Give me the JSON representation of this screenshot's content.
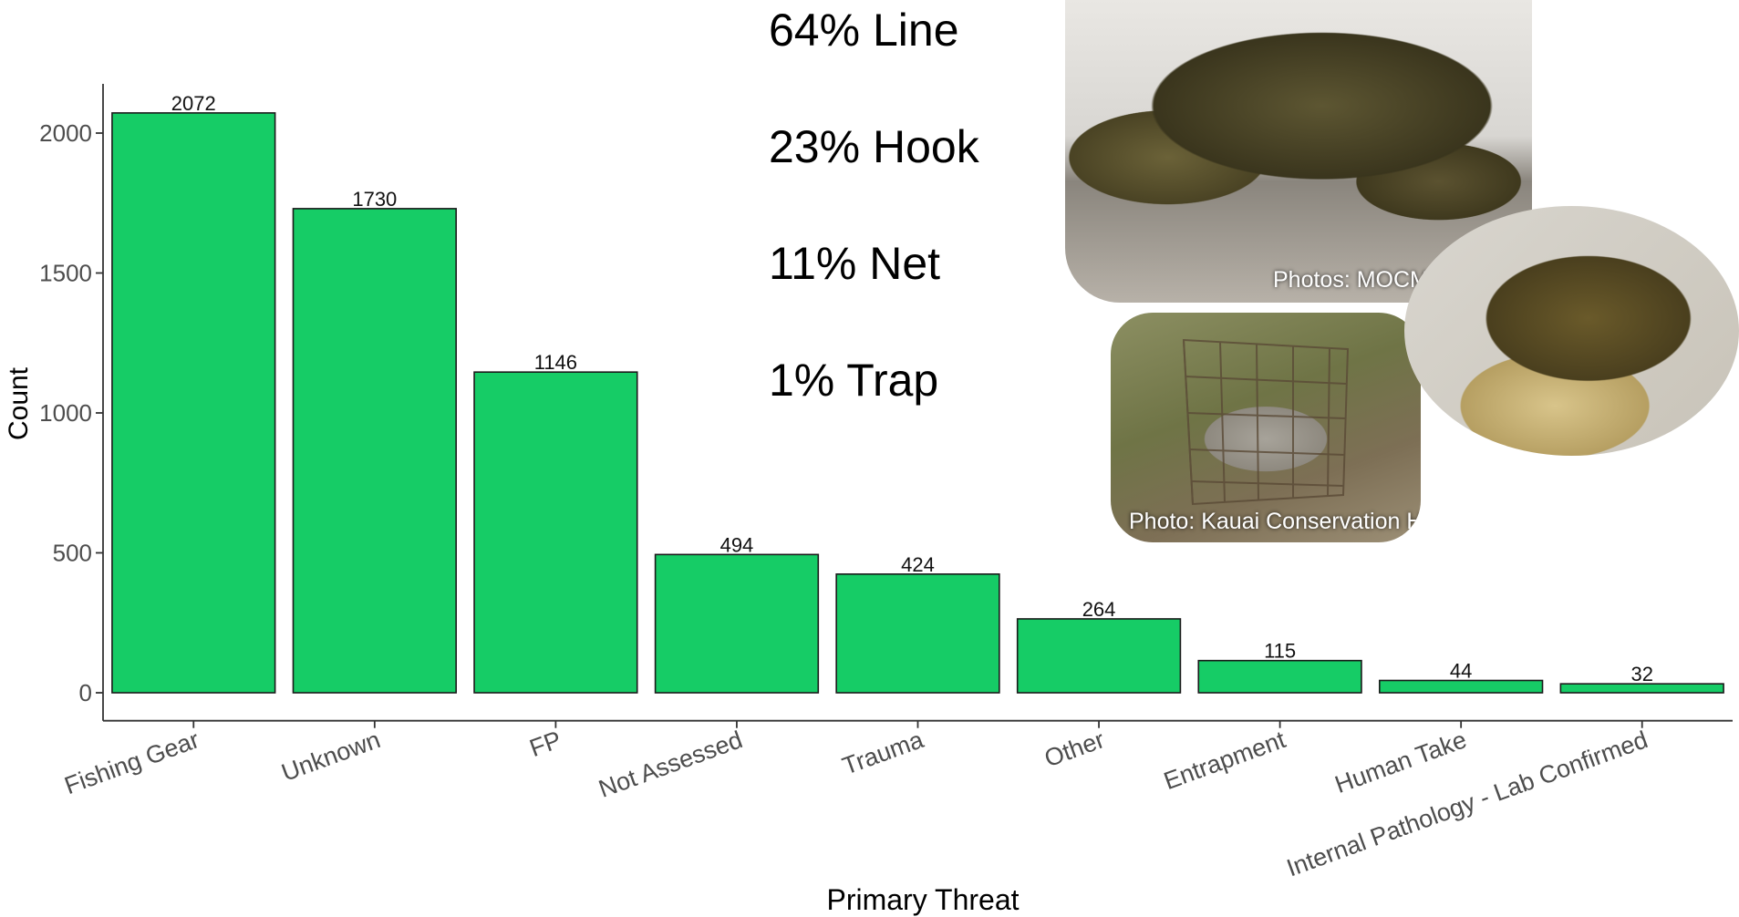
{
  "chart_data": {
    "type": "bar",
    "categories": [
      "Fishing Gear",
      "Unknown",
      "FP",
      "Not Assessed",
      "Trauma",
      "Other",
      "Entrapment",
      "Human Take",
      "Internal Pathology - Lab Confirmed"
    ],
    "values": [
      2072,
      1730,
      1146,
      494,
      424,
      264,
      115,
      44,
      32
    ],
    "data_labels": [
      "2072",
      "1730",
      "1146",
      "494",
      "424",
      "264",
      "115",
      "44",
      "32"
    ],
    "xlabel": "Primary Threat",
    "ylabel": "Count",
    "yticks": [
      0,
      500,
      1000,
      1500,
      2000
    ],
    "ylim": [
      -100,
      2180
    ],
    "grid": false,
    "bar_color": "#16cc66",
    "bar_edge_color": "#1a1a1a"
  },
  "callouts": [
    "64% Line",
    "23% Hook",
    "11% Net",
    "1% Trap"
  ],
  "photos": {
    "exam_credit": "Photos: MOCMI",
    "trap_credit": "Photo: Kauai Conservation Hui"
  }
}
